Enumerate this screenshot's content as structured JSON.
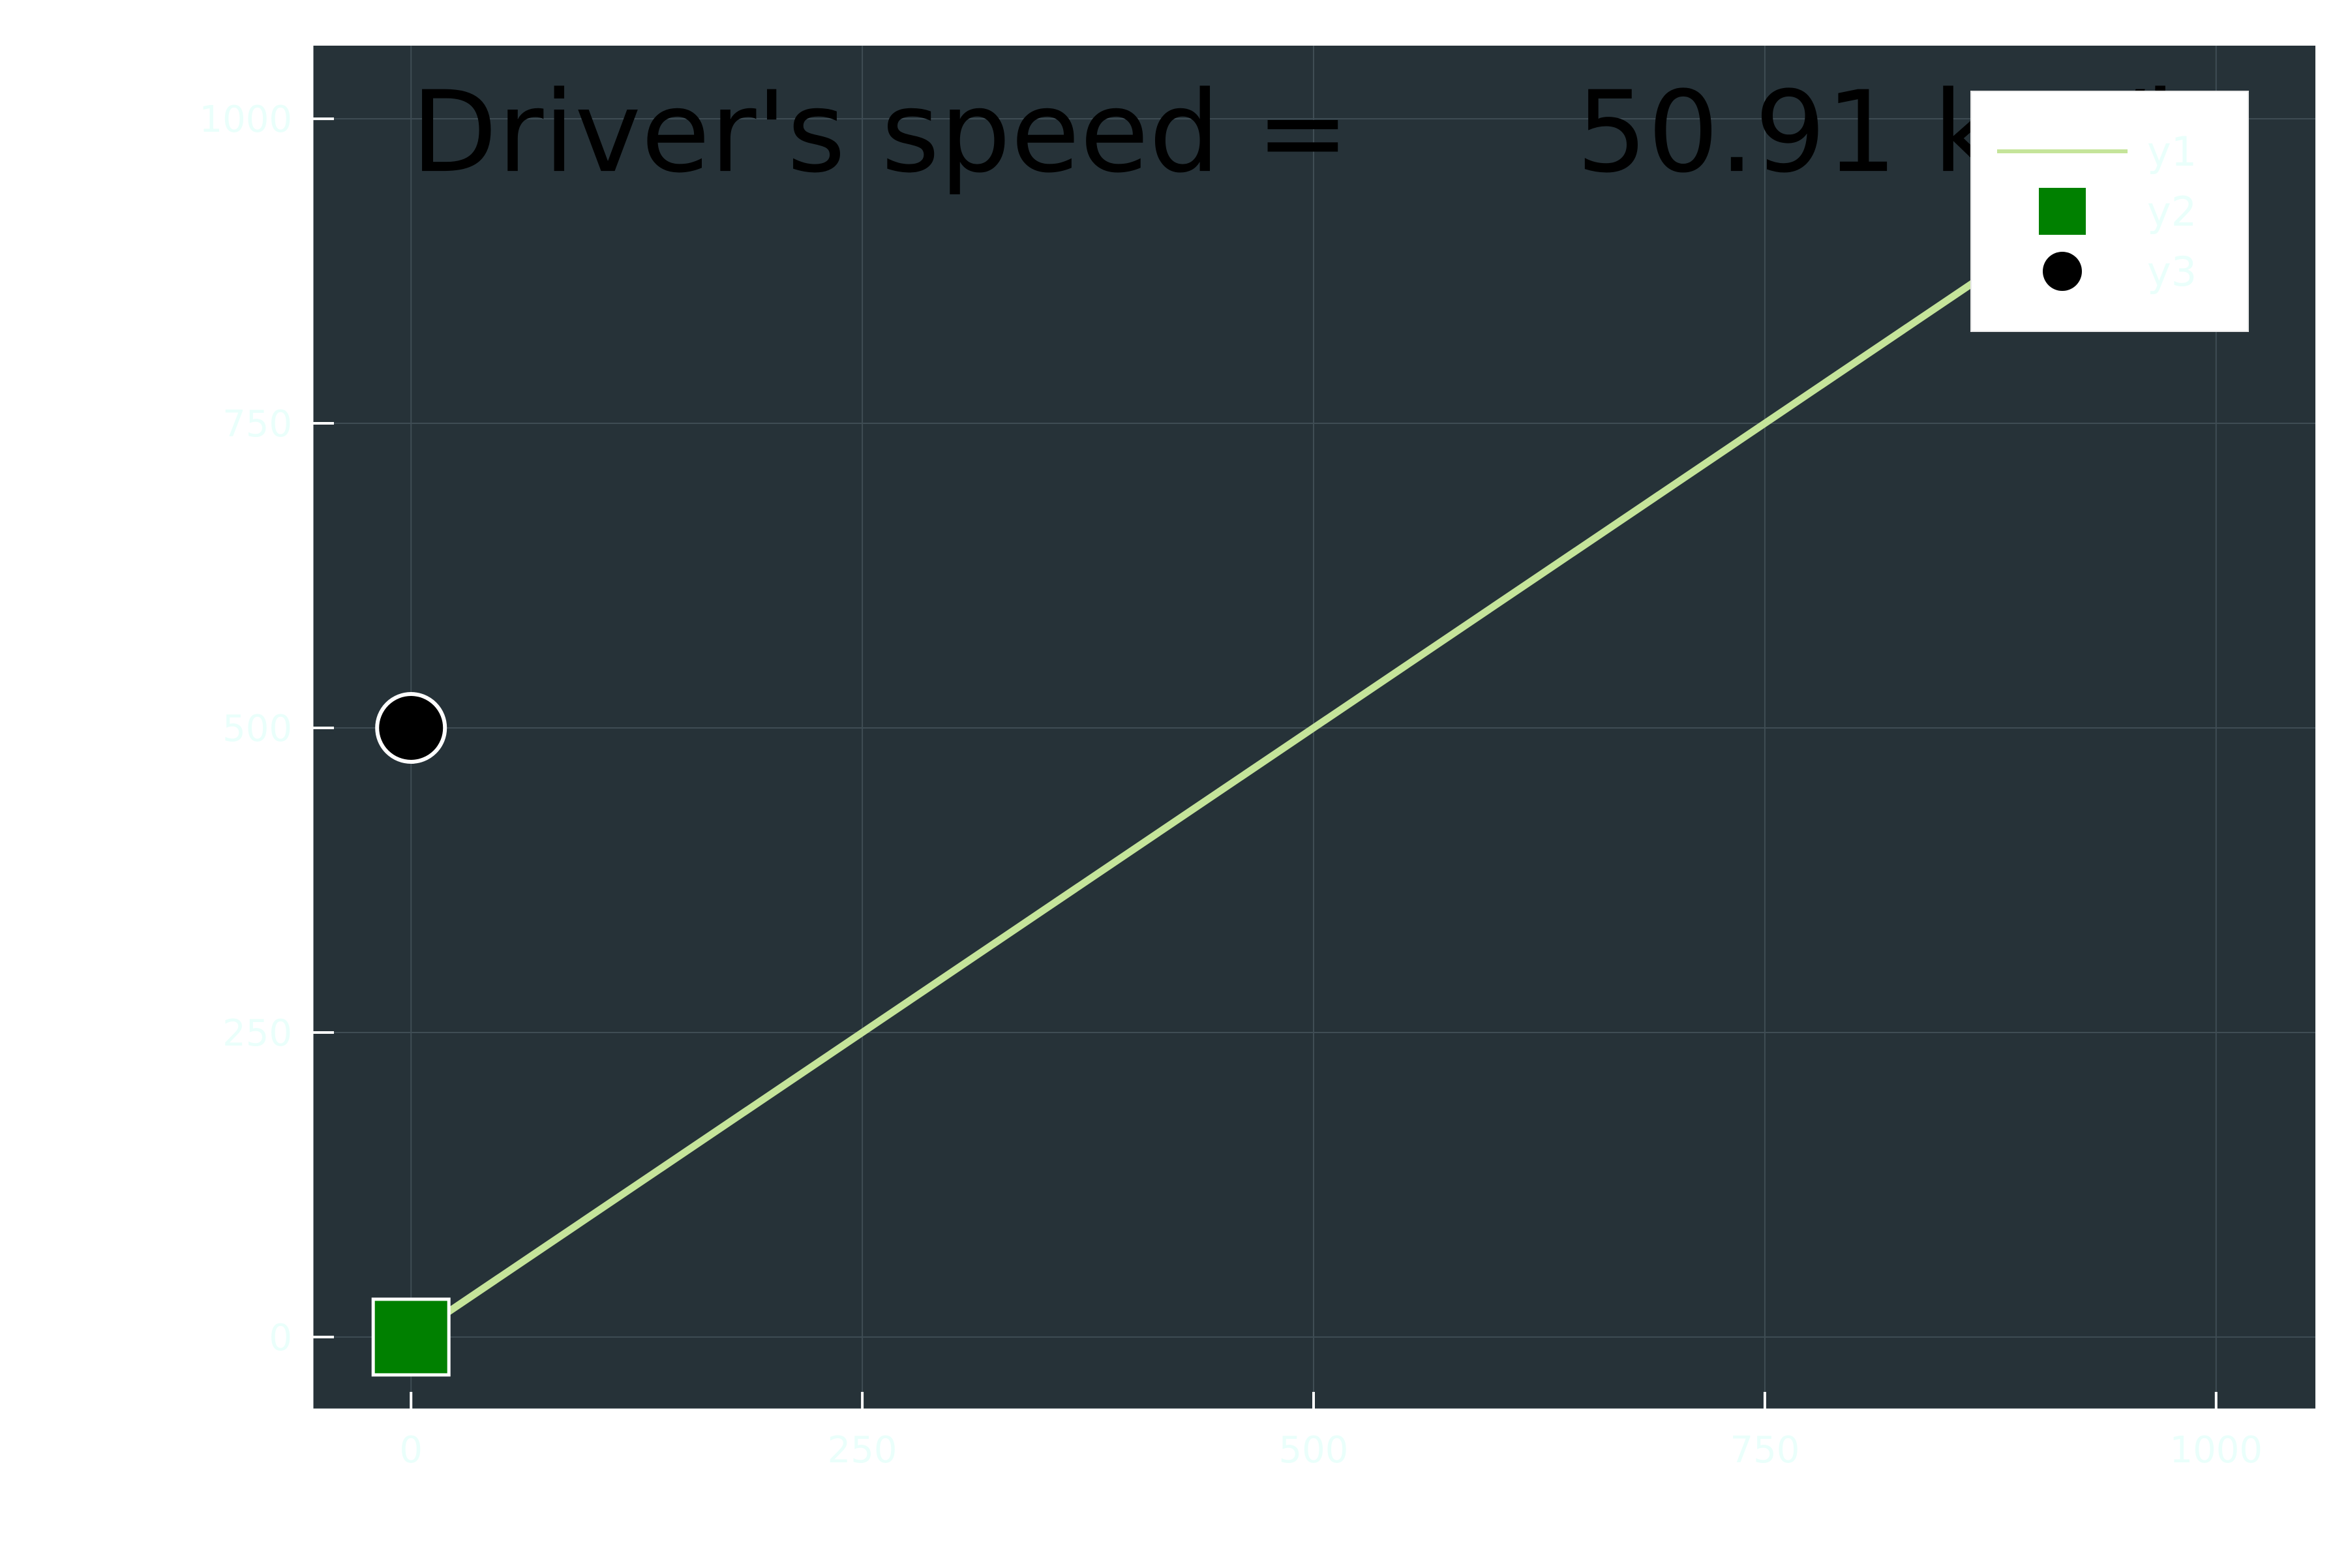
{
  "chart_data": {
    "type": "line",
    "title": "",
    "xlabel": "",
    "ylabel": "",
    "xlim": [
      -55,
      1055
    ],
    "ylim": [
      -60,
      1060
    ],
    "xticks": [
      0,
      250,
      500,
      750,
      1000
    ],
    "yticks": [
      0,
      250,
      500,
      750,
      1000
    ],
    "x_tick_labels": [
      "0",
      "250",
      "500",
      "750",
      "1000"
    ],
    "y_tick_labels": [
      "0",
      "250",
      "500",
      "750",
      "1000"
    ],
    "grid": true,
    "legend_position": "top-right",
    "series": [
      {
        "name": "y1",
        "kind": "line",
        "color": "#c5e49a",
        "x": [
          0,
          1000
        ],
        "y": [
          0,
          1000
        ]
      },
      {
        "name": "y2",
        "kind": "marker-square",
        "color": "#008000",
        "x": [
          0
        ],
        "y": [
          0
        ]
      },
      {
        "name": "y3",
        "kind": "marker-circle",
        "color": "#000000",
        "x": [
          0
        ],
        "y": [
          500
        ]
      }
    ],
    "annotations": [
      {
        "text": "Driver's speed =",
        "x": 0,
        "y": 1000,
        "anchor": "start"
      },
      {
        "text": "50.91 km/h",
        "x": 1000,
        "y": 1000,
        "anchor": "end"
      }
    ],
    "colors": {
      "plot_background": "#263238",
      "figure_background": "#ffffff",
      "grid": "#3f4d54",
      "tick_label": "#eafffb",
      "annotation": "#000000",
      "legend_background": "#ffffff",
      "axis": "#ffffff"
    }
  }
}
